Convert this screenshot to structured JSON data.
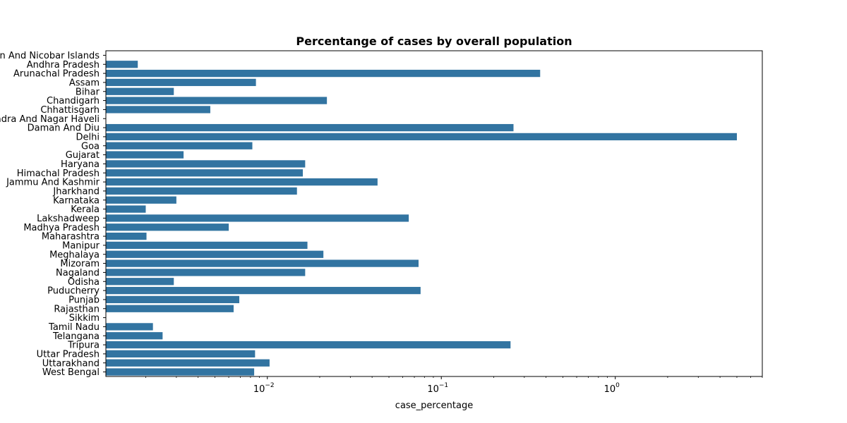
{
  "chart_data": {
    "type": "bar",
    "orientation": "horizontal",
    "title": "Percentange of cases by overall population",
    "xlabel": "case_percentage",
    "ylabel": "",
    "xscale": "log",
    "xlim": [
      0.00118,
      7.0
    ],
    "x_ticks": [
      {
        "base": "10",
        "exp": "−2",
        "value": 0.01
      },
      {
        "base": "10",
        "exp": "−1",
        "value": 0.1
      },
      {
        "base": "10",
        "exp": "0",
        "value": 1
      }
    ],
    "color": "#3274a1",
    "grid": false,
    "categories": [
      "Andaman And Nicobar Islands",
      "Andhra Pradesh",
      "Arunachal Pradesh",
      "Assam",
      "Bihar",
      "Chandigarh",
      "Chhattisgarh",
      "Dadra And Nagar Haveli",
      "Daman And Diu",
      "Delhi",
      "Goa",
      "Gujarat",
      "Haryana",
      "Himachal Pradesh",
      "Jammu And Kashmir",
      "Jharkhand",
      "Karnataka",
      "Kerala",
      "Lakshadweep",
      "Madhya Pradesh",
      "Maharashtra",
      "Manipur",
      "Meghalaya",
      "Mizoram",
      "Nagaland",
      "Odisha",
      "Puducherry",
      "Punjab",
      "Rajasthan",
      "Sikkim",
      "Tamil Nadu",
      "Telangana",
      "Tripura",
      "Uttar Pradesh",
      "Uttarakhand",
      "West Bengal"
    ],
    "values": [
      0.00118,
      0.0018,
      0.37,
      0.0086,
      0.0029,
      0.022,
      0.0047,
      0.00118,
      0.26,
      5.0,
      0.0082,
      0.0033,
      0.0165,
      0.016,
      0.043,
      0.0148,
      0.003,
      0.002,
      0.065,
      0.006,
      0.00202,
      0.017,
      0.021,
      0.074,
      0.0165,
      0.0029,
      0.076,
      0.0069,
      0.0064,
      0.00118,
      0.0022,
      0.0025,
      0.25,
      0.0085,
      0.0103,
      0.0084
    ]
  }
}
